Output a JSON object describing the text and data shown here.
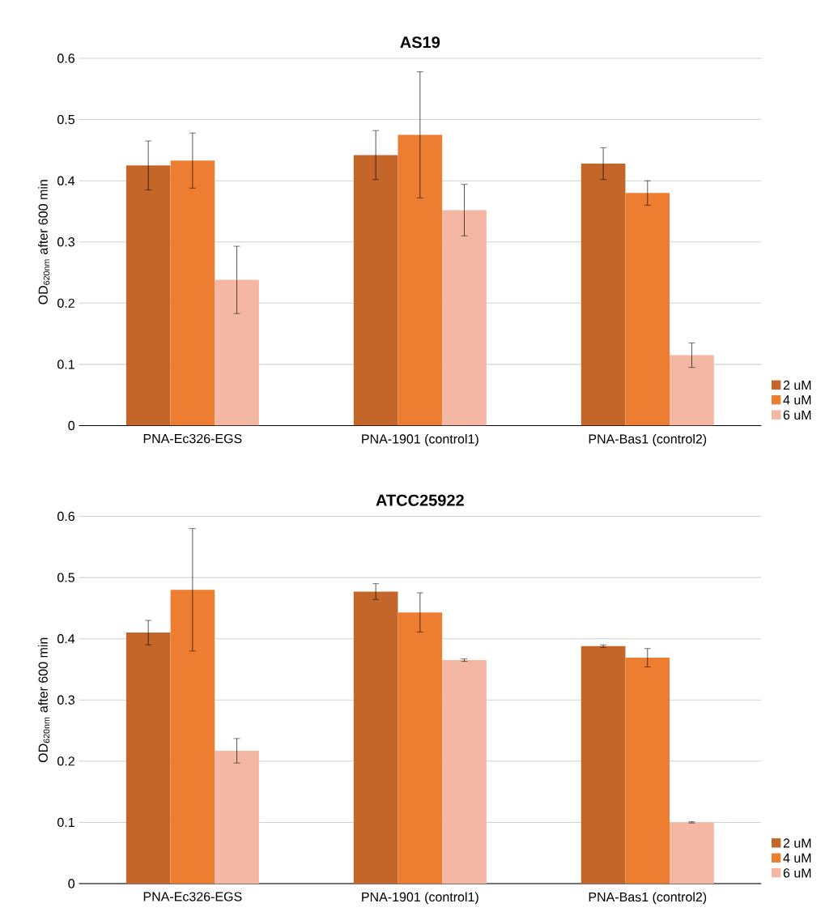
{
  "chart_data": [
    {
      "type": "bar",
      "title": "AS19",
      "ylabel": "OD$_{620nm}$ after 600  min",
      "categories": [
        "PNA-Ec326-EGS",
        "PNA-1901 (control1)",
        "PNA-Bas1 (control2)"
      ],
      "series": [
        {
          "name": "2 uM",
          "color": "#c4652a",
          "values": [
            0.425,
            0.442,
            0.428
          ],
          "errors": [
            0.04,
            0.04,
            0.026
          ]
        },
        {
          "name": "4 uM",
          "color": "#ed7d31",
          "values": [
            0.433,
            0.475,
            0.38
          ],
          "errors": [
            0.045,
            0.103,
            0.02
          ]
        },
        {
          "name": "6 uM",
          "color": "#f4b7a4",
          "values": [
            0.238,
            0.352,
            0.115
          ],
          "errors": [
            0.055,
            0.042,
            0.02
          ]
        }
      ],
      "ylim": [
        0,
        0.6
      ],
      "yticks": [
        0,
        0.1,
        0.2,
        0.3,
        0.4,
        0.5,
        0.6
      ],
      "grid": "y",
      "legend": "bottom right"
    },
    {
      "type": "bar",
      "title": "ATCC25922",
      "ylabel": "OD$_{620nm}$ after 600  min",
      "categories": [
        "PNA-Ec326-EGS",
        "PNA-1901 (control1)",
        "PNA-Bas1 (control2)"
      ],
      "series": [
        {
          "name": "2 uM",
          "color": "#c4652a",
          "values": [
            0.41,
            0.477,
            0.388
          ],
          "errors": [
            0.02,
            0.013,
            0.002
          ]
        },
        {
          "name": "4 uM",
          "color": "#ed7d31",
          "values": [
            0.48,
            0.443,
            0.369
          ],
          "errors": [
            0.1,
            0.032,
            0.015
          ]
        },
        {
          "name": "6 uM",
          "color": "#f4b7a4",
          "values": [
            0.217,
            0.365,
            0.1
          ],
          "errors": [
            0.02,
            0.002,
            0.001
          ]
        }
      ],
      "ylim": [
        0,
        0.6
      ],
      "yticks": [
        0,
        0.1,
        0.2,
        0.3,
        0.4,
        0.5,
        0.6
      ],
      "grid": "y",
      "legend": "bottom right"
    }
  ]
}
